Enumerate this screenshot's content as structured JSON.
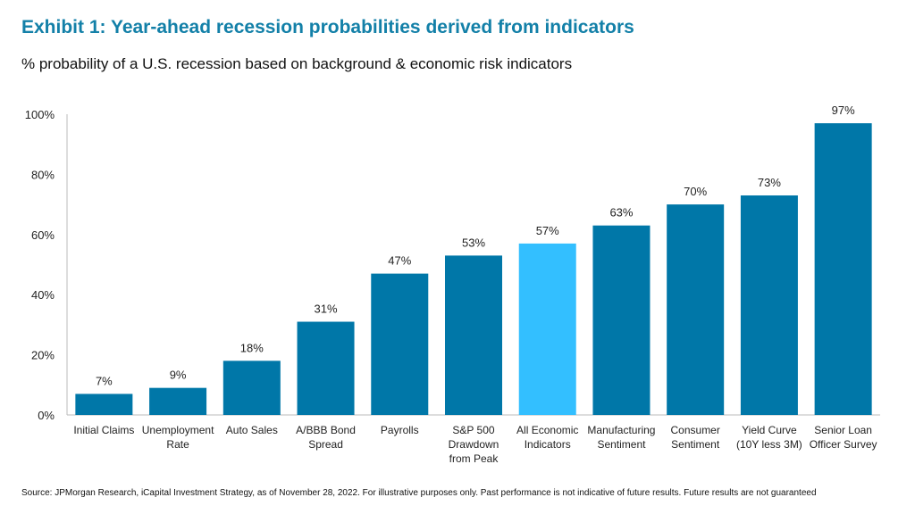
{
  "title": "Exhibit 1: Year-ahead recession probabilities derived from indicators",
  "subtitle": "% probability of a U.S. recession based on background & economic risk indicators",
  "source": "Source: JPMorgan Research, iCapital Investment Strategy, as of November 28, 2022. For illustrative purposes only. Past performance is not indicative of future results. Future results are not guaranteed",
  "chart_data": {
    "type": "bar",
    "title": "Exhibit 1: Year-ahead recession probabilities derived from indicators",
    "subtitle": "% probability of a U.S. recession based on background & economic risk indicators",
    "categories": [
      [
        "Initial Claims"
      ],
      [
        "Unemployment",
        "Rate"
      ],
      [
        "Auto Sales"
      ],
      [
        "A/BBB Bond",
        "Spread"
      ],
      [
        "Payrolls"
      ],
      [
        "S&P 500",
        "Drawdown",
        "from Peak"
      ],
      [
        "All Economic",
        "Indicators"
      ],
      [
        "Manufacturing",
        "Sentiment"
      ],
      [
        "Consumer",
        "Sentiment"
      ],
      [
        "Yield Curve",
        "(10Y less 3M)"
      ],
      [
        "Senior Loan",
        "Officer Survey"
      ]
    ],
    "values": [
      7,
      9,
      18,
      31,
      47,
      53,
      57,
      63,
      70,
      73,
      97
    ],
    "data_labels": [
      "7%",
      "9%",
      "18%",
      "31%",
      "47%",
      "53%",
      "57%",
      "63%",
      "70%",
      "73%",
      "97%"
    ],
    "highlight_index": 6,
    "ylim": [
      0,
      100
    ],
    "yticks": [
      0,
      20,
      40,
      60,
      80,
      100
    ],
    "ytick_labels": [
      "0%",
      "20%",
      "40%",
      "60%",
      "80%",
      "100%"
    ],
    "grid": false,
    "colors": {
      "bar": "#0077A8",
      "highlight": "#33BFFF",
      "title": "#1380A8"
    }
  }
}
